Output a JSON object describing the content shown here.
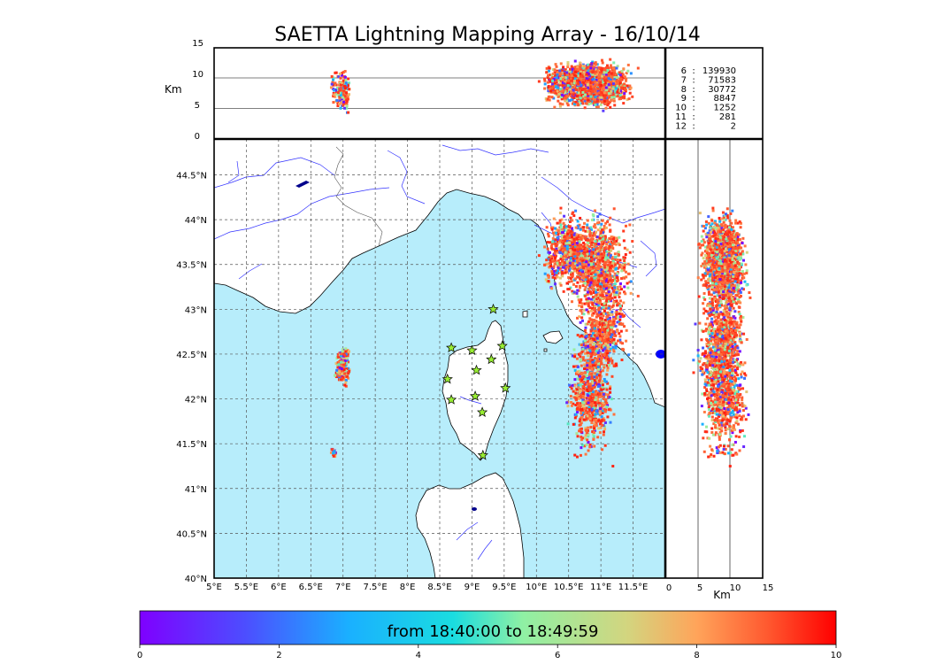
{
  "chart_data": {
    "type": "scatter",
    "title": "SAETTA Lightning Mapping Array - 16/10/14",
    "map": {
      "xlim": [
        5,
        12.0
      ],
      "ylim": [
        40,
        44.9
      ],
      "xticks": [
        "5°E",
        "5.5°E",
        "6°E",
        "6.5°E",
        "7°E",
        "7.5°E",
        "8°E",
        "8.5°E",
        "9°E",
        "9.5°E",
        "10°E",
        "10.5°E",
        "11°E",
        "11.5°E"
      ],
      "xtick_values": [
        5,
        5.5,
        6,
        6.5,
        7,
        7.5,
        8,
        8.5,
        9,
        9.5,
        10,
        10.5,
        11,
        11.5
      ],
      "yticks": [
        "40°N",
        "40.5°N",
        "41°N",
        "41.5°N",
        "42°N",
        "42.5°N",
        "43°N",
        "43.5°N",
        "44°N",
        "44.5°N"
      ],
      "ytick_values": [
        40,
        40.5,
        41,
        41.5,
        42,
        42.5,
        43,
        43.5,
        44,
        44.5
      ],
      "stations": [
        [
          9.33,
          43.0
        ],
        [
          8.68,
          42.57
        ],
        [
          9.0,
          42.54
        ],
        [
          9.47,
          42.59
        ],
        [
          9.3,
          42.44
        ],
        [
          9.07,
          42.32
        ],
        [
          8.62,
          42.22
        ],
        [
          9.52,
          42.12
        ],
        [
          8.68,
          41.99
        ],
        [
          9.05,
          42.03
        ],
        [
          9.16,
          41.85
        ],
        [
          9.17,
          41.37
        ]
      ],
      "clusters": [
        {
          "lon": 7.0,
          "lat": 42.33,
          "dlon": 0.1,
          "dlat": 0.15,
          "n": 140
        },
        {
          "lon": 7.0,
          "lat": 42.5,
          "dlon": 0.1,
          "dlat": 0.05,
          "n": 40
        },
        {
          "lon": 6.85,
          "lat": 41.4,
          "dlon": 0.05,
          "dlat": 0.05,
          "n": 20
        },
        {
          "lon": 10.5,
          "lat": 43.65,
          "dlon": 0.35,
          "dlat": 0.35,
          "n": 600
        },
        {
          "lon": 10.9,
          "lat": 43.5,
          "dlon": 0.4,
          "dlat": 0.5,
          "n": 700
        },
        {
          "lon": 11.0,
          "lat": 42.7,
          "dlon": 0.3,
          "dlat": 0.35,
          "n": 500
        },
        {
          "lon": 10.85,
          "lat": 42.05,
          "dlon": 0.3,
          "dlat": 0.55,
          "n": 700
        },
        {
          "lon": 11.1,
          "lat": 43.3,
          "dlon": 0.35,
          "dlat": 0.6,
          "n": 400
        }
      ]
    },
    "alt_lon": {
      "ylabel": "Km",
      "ylim": [
        0,
        15
      ],
      "yticks": [
        "0",
        "5",
        "10",
        "15"
      ]
    },
    "alt_lat": {
      "xlabel": "Km",
      "xlim": [
        0,
        15
      ],
      "xticks": [
        "0",
        "5",
        "10",
        "15"
      ]
    },
    "station_counts": [
      {
        "stations": "6",
        "sep": ":",
        "count": "139930",
        "highlight": false
      },
      {
        "stations": "7",
        "sep": ":",
        "count": "71583",
        "highlight": true
      },
      {
        "stations": "8",
        "sep": ":",
        "count": "30772",
        "highlight": false
      },
      {
        "stations": "9",
        "sep": ":",
        "count": "8847",
        "highlight": false
      },
      {
        "stations": "10",
        "sep": ":",
        "count": "1252",
        "highlight": false
      },
      {
        "stations": "11",
        "sep": ":",
        "count": "281",
        "highlight": false
      },
      {
        "stations": "12",
        "sep": ":",
        "count": "2",
        "highlight": false
      }
    ],
    "colorbar": {
      "label": "from 18:40:00 to 18:49:59",
      "ticks": [
        "0",
        "2",
        "4",
        "6",
        "8",
        "10"
      ],
      "tick_values": [
        0,
        2,
        4,
        6,
        8,
        10
      ],
      "range": [
        0,
        10
      ]
    },
    "colors": {
      "sea": "#b7edfb",
      "land": "#ffffff",
      "river": "#3333ff",
      "station": "#99ee33",
      "highlight": "#ff0000"
    }
  }
}
